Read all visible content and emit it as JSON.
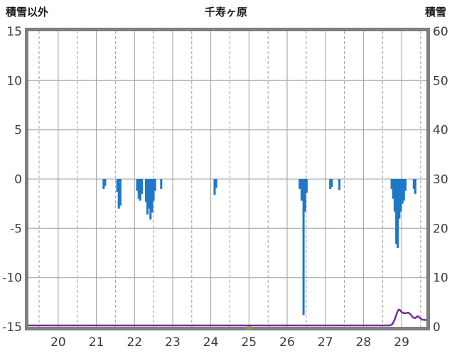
{
  "chart_data": {
    "type": "bar+line",
    "title": "千寿ヶ原",
    "x_axis": {
      "ticks": [
        20,
        21,
        22,
        23,
        24,
        25,
        26,
        27,
        28,
        29
      ],
      "range": [
        19.22,
        29.65
      ]
    },
    "left_axis": {
      "title": "積雪以外",
      "ticks": [
        15,
        10,
        5,
        0,
        -5,
        -10,
        -15
      ],
      "range": [
        -15,
        15
      ]
    },
    "right_axis": {
      "title": "積雪",
      "ticks": [
        60,
        50,
        40,
        30,
        20,
        10,
        0
      ],
      "range": [
        0,
        60
      ]
    },
    "grid": {
      "vertical_solid_every": 1,
      "vertical_dashed_every": 0.5,
      "horizontal_at_left_ticks": true
    },
    "style": {
      "background": "#ffffff",
      "frame_color": "#7f7f7f",
      "grid_color": "#9e9e9e",
      "tick_label_color": "#3a3a3a",
      "bar_color": "#1e78c8",
      "line_color": "#7030a0",
      "marker_color": "#93a13c"
    },
    "bottom_axis_marker": {
      "x": 25.0
    },
    "series": [
      {
        "name": "積雪以外",
        "type": "bar",
        "axis": "left",
        "points": [
          [
            21.19,
            -1.0
          ],
          [
            21.23,
            -0.7
          ],
          [
            21.55,
            -1.3
          ],
          [
            21.59,
            -3.0
          ],
          [
            21.63,
            -2.7
          ],
          [
            22.07,
            -1.2
          ],
          [
            22.11,
            -2.0
          ],
          [
            22.15,
            -2.2
          ],
          [
            22.19,
            -1.5
          ],
          [
            22.3,
            -2.3
          ],
          [
            22.34,
            -3.6
          ],
          [
            22.38,
            -3.0
          ],
          [
            22.42,
            -4.1
          ],
          [
            22.46,
            -3.4
          ],
          [
            22.5,
            -2.2
          ],
          [
            22.54,
            -1.2
          ],
          [
            22.7,
            -1.0
          ],
          [
            24.1,
            -1.6
          ],
          [
            24.14,
            -0.9
          ],
          [
            26.33,
            -1.0
          ],
          [
            26.38,
            -2.2
          ],
          [
            26.43,
            -13.8
          ],
          [
            26.47,
            -3.3
          ],
          [
            26.51,
            -1.4
          ],
          [
            27.13,
            -1.0
          ],
          [
            27.17,
            -0.8
          ],
          [
            27.37,
            -1.1
          ],
          [
            28.74,
            -1.0
          ],
          [
            28.78,
            -2.0
          ],
          [
            28.82,
            -3.3
          ],
          [
            28.86,
            -6.6
          ],
          [
            28.9,
            -7.0
          ],
          [
            28.94,
            -4.0
          ],
          [
            28.98,
            -3.3
          ],
          [
            29.02,
            -2.5
          ],
          [
            29.06,
            -2.2
          ],
          [
            29.1,
            -1.2
          ],
          [
            29.32,
            -1.0
          ],
          [
            29.36,
            -1.5
          ]
        ]
      },
      {
        "name": "積雪",
        "type": "line",
        "axis": "right",
        "points": [
          [
            19.22,
            0
          ],
          [
            28.7,
            0
          ],
          [
            28.76,
            0.3
          ],
          [
            28.82,
            1.2
          ],
          [
            28.88,
            2.6
          ],
          [
            28.92,
            3.2
          ],
          [
            28.96,
            3.1
          ],
          [
            29.0,
            2.7
          ],
          [
            29.06,
            2.5
          ],
          [
            29.12,
            2.5
          ],
          [
            29.18,
            2.6
          ],
          [
            29.24,
            2.2
          ],
          [
            29.3,
            1.6
          ],
          [
            29.36,
            1.5
          ],
          [
            29.42,
            1.9
          ],
          [
            29.48,
            1.5
          ],
          [
            29.54,
            1.2
          ],
          [
            29.6,
            1.1
          ],
          [
            29.65,
            1.1
          ]
        ]
      }
    ]
  }
}
